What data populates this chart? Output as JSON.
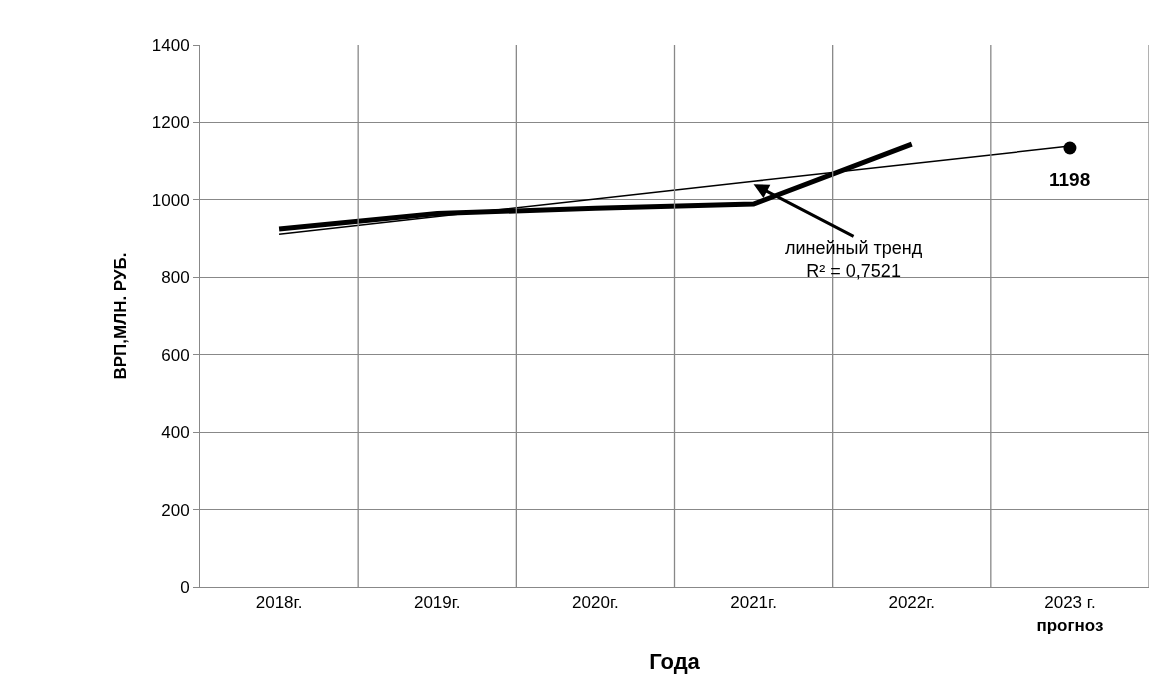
{
  "chart_data": {
    "type": "line",
    "xlabel": "Года",
    "ylabel": "ВРП,МЛН. РУБ.",
    "categories": [
      "2018г.",
      "2019г.",
      "2020г.",
      "2021г.",
      "2022г.",
      "2023 г.\nпрогноз"
    ],
    "series": [
      {
        "color": "#000000",
        "values": [
          925,
          965,
          978,
          989,
          1144,
          null
        ]
      },
      {
        "color": "#000000",
        "values": [
          911,
          957,
          1002,
          1048,
          1093,
          1139
        ]
      },
      {
        "type": "scatter",
        "color": "#000000",
        "values": [
          null,
          null,
          null,
          null,
          null,
          1134
        ]
      }
    ],
    "annotations": [
      {
        "text": "1198",
        "x": "2023 г.\nпрогноз",
        "y": 1134
      },
      {
        "text": "линейный тренд\nR² = 0,7521",
        "x": "2021г.",
        "y": 1040
      }
    ],
    "ylim": [
      0,
      1400
    ],
    "yticks": [
      0,
      200,
      400,
      600,
      800,
      1000,
      1200,
      1400
    ],
    "grid": true,
    "legend": false
  }
}
